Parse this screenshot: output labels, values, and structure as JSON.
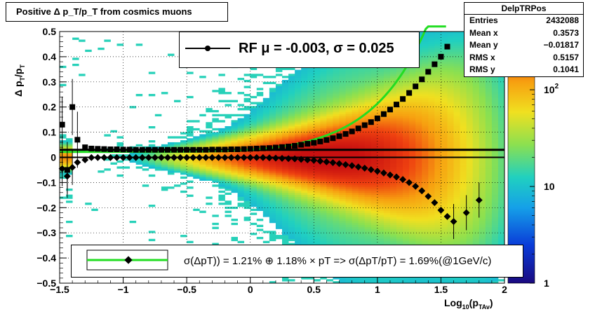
{
  "title": "Positive Δ p_T/p_T from cosmics muons",
  "stats": {
    "name": "DelpTRPos",
    "rows": [
      {
        "label": "Entries",
        "value": "2432088"
      },
      {
        "label": "Mean x",
        "value": "0.3573"
      },
      {
        "label": "Mean y",
        "value": "−0.01817"
      },
      {
        "label": "RMS x",
        "value": "0.5157"
      },
      {
        "label": "RMS y",
        "value": "0.1041"
      }
    ]
  },
  "legend_top": "RF μ = -0.003, σ =   0.025",
  "legend_bottom": "σ(ΔpT)) =  1.21% ⊕  1.18% × pT => σ(ΔpT/pT) =  1.69%(@1GeV/c)",
  "colors": {
    "fit": "#22dd22",
    "markers": "#000000"
  },
  "chart_data": {
    "type": "heatmap",
    "title": "Positive Δ p_T/p_T from cosmics muons",
    "xlabel": "Log10(p_TAv)",
    "ylabel": "Δ p_T/p_T",
    "xlim": [
      -1.5,
      2
    ],
    "ylim": [
      -0.5,
      0.5
    ],
    "zscale": "log",
    "zlim": [
      1,
      400
    ],
    "x_ticks": [
      "−1.5",
      "−1",
      "−0.5",
      "0",
      "0.5",
      "1",
      "1.5",
      "2"
    ],
    "y_ticks": [
      "−0.5",
      "−0.4",
      "−0.3",
      "−0.2",
      "−0.1",
      "0",
      "0.1",
      "0.2",
      "0.3",
      "0.4",
      "0.5"
    ],
    "z_ticks": [
      "1",
      "10",
      "10^2"
    ],
    "grid": true,
    "series": [
      {
        "name": "",
        "x": [
          -1.48,
          -1.44,
          -1.4,
          -1.36,
          -1.3,
          -1.25,
          -1.2,
          -1.15,
          -1.1,
          -1.05,
          -1.0,
          -0.95,
          -0.9,
          -0.85,
          -0.8,
          -0.75,
          -0.7,
          -0.65,
          -0.6,
          -0.55,
          -0.5,
          -0.45,
          -0.4,
          -0.35,
          -0.3,
          -0.25,
          -0.2,
          -0.15,
          -0.1,
          -0.05,
          0.0,
          0.05,
          0.1,
          0.15,
          0.2,
          0.25,
          0.3,
          0.35,
          0.4,
          0.45,
          0.5,
          0.55,
          0.6,
          0.65,
          0.7,
          0.75,
          0.8,
          0.85,
          0.9,
          0.95,
          1.0,
          1.05,
          1.1,
          1.15,
          1.2,
          1.25,
          1.3,
          1.35,
          1.4,
          1.45,
          1.5,
          1.55
        ],
        "y": [
          0.13,
          -0.05,
          0.2,
          0.07,
          0.04,
          0.035,
          0.034,
          0.033,
          0.032,
          0.032,
          0.031,
          0.031,
          0.03,
          0.03,
          0.03,
          0.03,
          0.03,
          0.03,
          0.03,
          0.03,
          0.03,
          0.03,
          0.03,
          0.03,
          0.031,
          0.031,
          0.031,
          0.032,
          0.032,
          0.033,
          0.034,
          0.035,
          0.036,
          0.037,
          0.039,
          0.041,
          0.043,
          0.046,
          0.05,
          0.054,
          0.058,
          0.063,
          0.069,
          0.076,
          0.084,
          0.093,
          0.103,
          0.115,
          0.128,
          0.14,
          0.155,
          0.172,
          0.19,
          0.21,
          0.232,
          0.256,
          0.282,
          0.31,
          0.34,
          0.37,
          0.4,
          0.44
        ]
      },
      {
        "name": "",
        "x": [
          -1.48,
          -1.44,
          -1.4,
          -1.36,
          -1.3,
          -1.25,
          -1.2,
          -1.15,
          -1.1,
          -1.05,
          -1.0,
          -0.95,
          -0.9,
          -0.85,
          -0.8,
          -0.75,
          -0.7,
          -0.65,
          -0.6,
          -0.55,
          -0.5,
          -0.45,
          -0.4,
          -0.35,
          -0.3,
          -0.25,
          -0.2,
          -0.15,
          -0.1,
          -0.05,
          0.0,
          0.05,
          0.1,
          0.15,
          0.2,
          0.25,
          0.3,
          0.35,
          0.4,
          0.45,
          0.5,
          0.55,
          0.6,
          0.65,
          0.7,
          0.75,
          0.8,
          0.85,
          0.9,
          0.95,
          1.0,
          1.05,
          1.1,
          1.15,
          1.2,
          1.25,
          1.3,
          1.35,
          1.4,
          1.45,
          1.5,
          1.55,
          1.6,
          1.7,
          1.8
        ],
        "y": [
          -0.045,
          -0.075,
          -0.04,
          -0.02,
          -0.01,
          -0.001,
          -0.001,
          -0.001,
          -0.001,
          -0.001,
          -0.001,
          -0.001,
          -0.001,
          -0.001,
          -0.001,
          -0.001,
          -0.001,
          -0.001,
          -0.001,
          -0.001,
          -0.001,
          -0.001,
          -0.001,
          -0.001,
          -0.001,
          -0.001,
          -0.001,
          -0.001,
          -0.001,
          -0.001,
          -0.001,
          -0.001,
          -0.001,
          -0.002,
          -0.003,
          -0.004,
          -0.005,
          -0.006,
          -0.008,
          -0.01,
          -0.012,
          -0.015,
          -0.018,
          -0.021,
          -0.025,
          -0.029,
          -0.033,
          -0.038,
          -0.043,
          -0.049,
          -0.055,
          -0.062,
          -0.07,
          -0.078,
          -0.088,
          -0.1,
          -0.115,
          -0.133,
          -0.155,
          -0.18,
          -0.21,
          -0.235,
          -0.255,
          -0.22,
          -0.17
        ]
      }
    ]
  }
}
